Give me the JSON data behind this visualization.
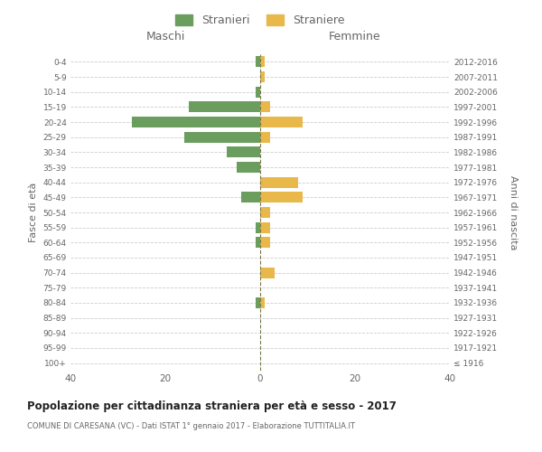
{
  "age_groups": [
    "100+",
    "95-99",
    "90-94",
    "85-89",
    "80-84",
    "75-79",
    "70-74",
    "65-69",
    "60-64",
    "55-59",
    "50-54",
    "45-49",
    "40-44",
    "35-39",
    "30-34",
    "25-29",
    "20-24",
    "15-19",
    "10-14",
    "5-9",
    "0-4"
  ],
  "birth_years": [
    "≤ 1916",
    "1917-1921",
    "1922-1926",
    "1927-1931",
    "1932-1936",
    "1937-1941",
    "1942-1946",
    "1947-1951",
    "1952-1956",
    "1957-1961",
    "1962-1966",
    "1967-1971",
    "1972-1976",
    "1977-1981",
    "1982-1986",
    "1987-1991",
    "1992-1996",
    "1997-2001",
    "2002-2006",
    "2007-2011",
    "2012-2016"
  ],
  "maschi": [
    0,
    0,
    0,
    0,
    1,
    0,
    0,
    0,
    1,
    1,
    0,
    4,
    0,
    5,
    7,
    16,
    27,
    15,
    1,
    0,
    1
  ],
  "femmine": [
    0,
    0,
    0,
    0,
    1,
    0,
    3,
    0,
    2,
    2,
    2,
    9,
    8,
    0,
    0,
    2,
    9,
    2,
    0,
    1,
    1
  ],
  "maschi_color": "#6b9e5e",
  "femmine_color": "#e8b84b",
  "background_color": "#ffffff",
  "grid_color": "#cccccc",
  "center_line_color": "#7a7a4a",
  "xlim": [
    -40,
    40
  ],
  "xticks": [
    -40,
    -20,
    0,
    20,
    40
  ],
  "xtick_labels": [
    "40",
    "20",
    "0",
    "20",
    "40"
  ],
  "title": "Popolazione per cittadinanza straniera per età e sesso - 2017",
  "subtitle": "COMUNE DI CARESANA (VC) - Dati ISTAT 1° gennaio 2017 - Elaborazione TUTTITALIA.IT",
  "ylabel_left": "Fasce di età",
  "ylabel_right": "Anni di nascita",
  "header_left": "Maschi",
  "header_right": "Femmine",
  "legend_stranieri": "Stranieri",
  "legend_straniere": "Straniere",
  "text_color": "#666666",
  "title_color": "#222222"
}
